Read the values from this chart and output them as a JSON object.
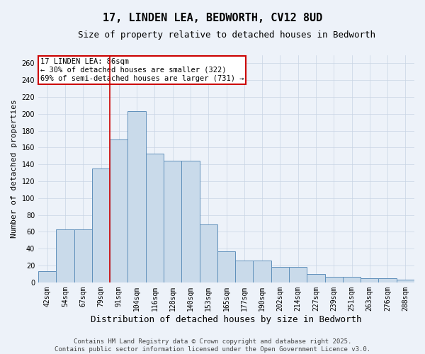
{
  "title": "17, LINDEN LEA, BEDWORTH, CV12 8UD",
  "subtitle": "Size of property relative to detached houses in Bedworth",
  "xlabel": "Distribution of detached houses by size in Bedworth",
  "ylabel": "Number of detached properties",
  "categories": [
    "42sqm",
    "54sqm",
    "67sqm",
    "79sqm",
    "91sqm",
    "104sqm",
    "116sqm",
    "128sqm",
    "140sqm",
    "153sqm",
    "165sqm",
    "177sqm",
    "190sqm",
    "202sqm",
    "214sqm",
    "227sqm",
    "239sqm",
    "251sqm",
    "263sqm",
    "276sqm",
    "288sqm"
  ],
  "values": [
    13,
    63,
    63,
    135,
    170,
    203,
    153,
    144,
    144,
    69,
    37,
    26,
    26,
    18,
    18,
    10,
    7,
    7,
    5,
    5,
    3
  ],
  "bar_color": "#c9daea",
  "bar_edge_color": "#6090bb",
  "grid_color": "#c8d4e4",
  "background_color": "#edf2f9",
  "annotation_line1": "17 LINDEN LEA: 86sqm",
  "annotation_line2": "← 30% of detached houses are smaller (322)",
  "annotation_line3": "69% of semi-detached houses are larger (731) →",
  "annotation_box_color": "#ffffff",
  "annotation_box_edge": "#cc0000",
  "vline_color": "#cc0000",
  "ylim": [
    0,
    270
  ],
  "yticks": [
    0,
    20,
    40,
    60,
    80,
    100,
    120,
    140,
    160,
    180,
    200,
    220,
    240,
    260
  ],
  "footer_text": "Contains HM Land Registry data © Crown copyright and database right 2025.\nContains public sector information licensed under the Open Government Licence v3.0.",
  "title_fontsize": 11,
  "subtitle_fontsize": 9,
  "xlabel_fontsize": 9,
  "ylabel_fontsize": 8,
  "tick_fontsize": 7,
  "annotation_fontsize": 7.5,
  "footer_fontsize": 6.5
}
